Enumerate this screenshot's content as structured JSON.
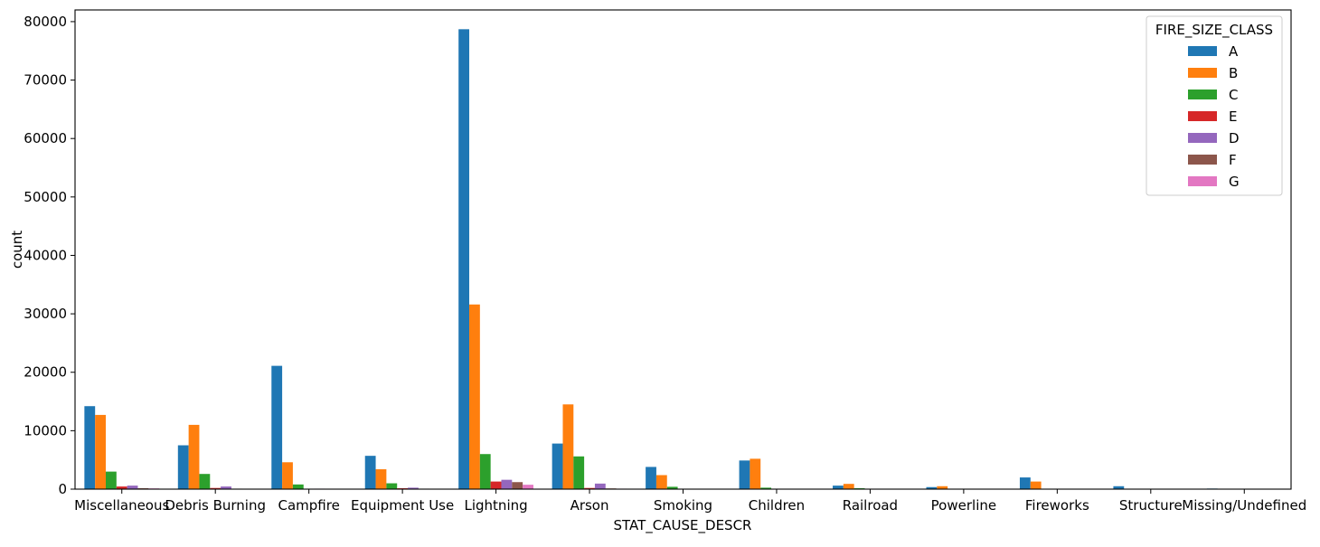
{
  "chart_data": {
    "type": "bar",
    "title": "",
    "xlabel": "STAT_CAUSE_DESCR",
    "ylabel": "count",
    "ylim": [
      0,
      82000
    ],
    "yticks": [
      0,
      10000,
      20000,
      30000,
      40000,
      50000,
      60000,
      70000,
      80000
    ],
    "grid": false,
    "legend": {
      "title": "FIRE_SIZE_CLASS",
      "placement": "top-right"
    },
    "categories": [
      "Miscellaneous",
      "Debris Burning",
      "Campfire",
      "Equipment Use",
      "Lightning",
      "Arson",
      "Smoking",
      "Children",
      "Railroad",
      "Powerline",
      "Fireworks",
      "Structure",
      "Missing/Undefined"
    ],
    "series": [
      {
        "name": "A",
        "color": "#1f77b4",
        "values": [
          14200,
          7500,
          21100,
          5700,
          78700,
          7800,
          3800,
          4900,
          600,
          350,
          2000,
          500,
          100
        ]
      },
      {
        "name": "B",
        "color": "#ff7f0e",
        "values": [
          12700,
          11000,
          4600,
          3400,
          31600,
          14500,
          2400,
          5200,
          900,
          500,
          1300,
          50,
          60
        ]
      },
      {
        "name": "C",
        "color": "#2ca02c",
        "values": [
          3000,
          2600,
          800,
          1000,
          6000,
          5600,
          400,
          250,
          150,
          60,
          40,
          10,
          20
        ]
      },
      {
        "name": "E",
        "color": "#d62728",
        "values": [
          450,
          200,
          50,
          150,
          1300,
          200,
          30,
          20,
          10,
          10,
          5,
          5,
          5
        ]
      },
      {
        "name": "D",
        "color": "#9467bd",
        "values": [
          600,
          450,
          80,
          250,
          1600,
          950,
          50,
          40,
          20,
          10,
          10,
          5,
          5
        ]
      },
      {
        "name": "F",
        "color": "#8c564b",
        "values": [
          150,
          80,
          20,
          80,
          1200,
          120,
          10,
          10,
          5,
          5,
          5,
          0,
          5
        ]
      },
      {
        "name": "G",
        "color": "#e377c2",
        "values": [
          120,
          50,
          20,
          60,
          750,
          80,
          10,
          5,
          5,
          5,
          5,
          0,
          5
        ]
      }
    ]
  }
}
